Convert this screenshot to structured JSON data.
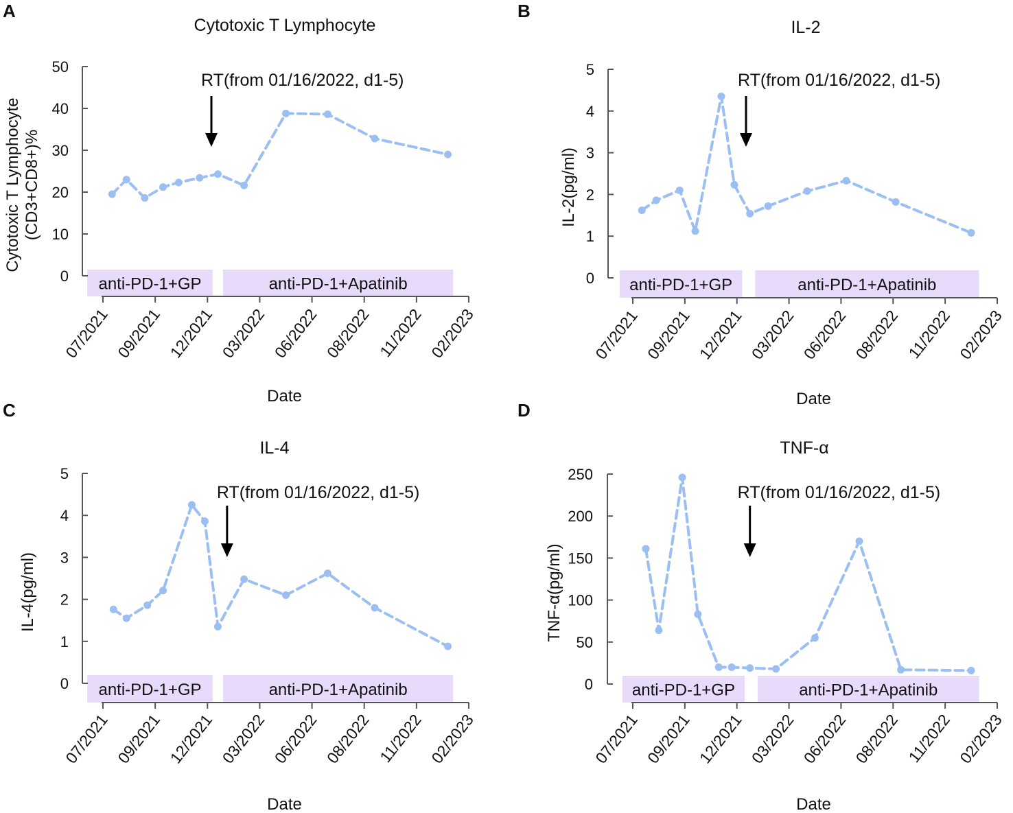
{
  "colors": {
    "series": "#9bbff2",
    "band": "#e7dafa",
    "axis": "#555555",
    "arrow": "#000000"
  },
  "chart_data": [
    {
      "panel": "A",
      "type": "line",
      "title": "Cytotoxic T Lymphocyte",
      "ylabel_lines": [
        "Cytotoxic T Lymphocyte",
        "(CD3+CD8+)%"
      ],
      "xlabel": "Date",
      "ylim": [
        0,
        50
      ],
      "yticks": [
        "0",
        "10",
        "20",
        "30",
        "40",
        "50"
      ],
      "xticks": [
        "07/2021",
        "09/2021",
        "12/2021",
        "03/2022",
        "06/2022",
        "08/2022",
        "11/2022",
        "02/2023"
      ],
      "x": [
        0.35,
        0.9,
        1.6,
        2.3,
        2.9,
        3.7,
        4.4,
        5.4,
        7.0,
        8.6,
        10.4,
        13.2
      ],
      "y": [
        19.5,
        23.0,
        18.6,
        21.2,
        22.3,
        23.4,
        24.3,
        21.6,
        38.8,
        38.6,
        32.8,
        29.0
      ],
      "annotation": "RT(from 01/16/2022, d1-5)",
      "arrow_x": 4.15,
      "bands": [
        {
          "label": "anti-PD-1+GP",
          "start": -0.6,
          "end": 4.2
        },
        {
          "label": "anti-PD-1+Apatinib",
          "start": 4.6,
          "end": 13.4
        }
      ]
    },
    {
      "panel": "B",
      "type": "line",
      "title": "IL-2",
      "ylabel_lines": [
        "IL-2(pg/ml)"
      ],
      "xlabel": "Date",
      "ylim": [
        0,
        5
      ],
      "yticks": [
        "0",
        "1",
        "2",
        "3",
        "4",
        "5"
      ],
      "xticks": [
        "07/2021",
        "09/2021",
        "12/2021",
        "03/2022",
        "06/2022",
        "08/2022",
        "11/2022",
        "02/2023"
      ],
      "x": [
        0.35,
        0.9,
        1.8,
        2.4,
        3.4,
        3.9,
        4.5,
        5.2,
        6.7,
        8.2,
        10.1,
        13.0
      ],
      "y": [
        1.62,
        1.86,
        2.1,
        1.12,
        4.35,
        2.23,
        1.54,
        1.72,
        2.08,
        2.33,
        1.82,
        1.08
      ],
      "annotation": "RT(from 01/16/2022, d1-5)",
      "arrow_x": 4.35,
      "bands": [
        {
          "label": "anti-PD-1+GP",
          "start": -0.5,
          "end": 4.2
        },
        {
          "label": "anti-PD-1+Apatinib",
          "start": 4.7,
          "end": 13.3
        }
      ]
    },
    {
      "panel": "C",
      "type": "line",
      "title": "IL-4",
      "ylabel_lines": [
        "IL-4(pg/ml)"
      ],
      "xlabel": "Date",
      "ylim": [
        0,
        5
      ],
      "yticks": [
        "0",
        "1",
        "2",
        "3",
        "4",
        "5"
      ],
      "xticks": [
        "07/2021",
        "09/2021",
        "12/2021",
        "03/2022",
        "06/2022",
        "08/2022",
        "11/2022",
        "02/2023"
      ],
      "x": [
        0.4,
        0.9,
        1.7,
        2.3,
        3.4,
        3.9,
        4.4,
        5.4,
        7.0,
        8.6,
        10.4,
        13.2
      ],
      "y": [
        1.76,
        1.55,
        1.86,
        2.21,
        4.25,
        3.86,
        1.35,
        2.48,
        2.1,
        2.62,
        1.8,
        0.88
      ],
      "annotation": "RT(from 01/16/2022, d1-5)",
      "arrow_x": 4.75,
      "bands": [
        {
          "label": "anti-PD-1+GP",
          "start": -0.6,
          "end": 4.2
        },
        {
          "label": "anti-PD-1+Apatinib",
          "start": 4.6,
          "end": 13.4
        }
      ]
    },
    {
      "panel": "D",
      "type": "line",
      "title": "TNF-α",
      "ylabel_lines": [
        "TNF-α(pg/ml)"
      ],
      "xlabel": "Date",
      "ylim": [
        0,
        250
      ],
      "yticks": [
        "0",
        "50",
        "100",
        "150",
        "200",
        "250"
      ],
      "xticks": [
        "07/2021",
        "09/2021",
        "12/2021",
        "03/2022",
        "06/2022",
        "08/2022",
        "11/2022",
        "02/2023"
      ],
      "x": [
        0.5,
        1.0,
        1.9,
        2.5,
        3.3,
        3.8,
        4.5,
        5.5,
        7.0,
        8.7,
        10.3,
        13.0
      ],
      "y": [
        161,
        64,
        246,
        83,
        20,
        20,
        19,
        18,
        55,
        170,
        17,
        16
      ],
      "annotation": "RT(from 01/16/2022, d1-5)",
      "arrow_x": 4.5,
      "bands": [
        {
          "label": "anti-PD-1+GP",
          "start": -0.4,
          "end": 4.3
        },
        {
          "label": "anti-PD-1+Apatinib",
          "start": 4.8,
          "end": 13.3
        }
      ]
    }
  ]
}
